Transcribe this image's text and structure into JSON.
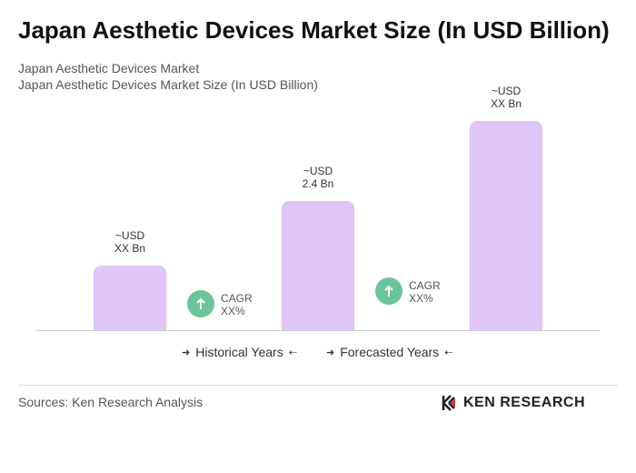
{
  "chart_data": {
    "type": "bar",
    "title": "Japan Aesthetic Devices Market Size (In USD Billion)",
    "subtitle": "Japan Aesthetic Devices Market",
    "subtitle2": "Japan Aesthetic Devices Market Size (In USD Billion)",
    "values": [
      1.2,
      2.4,
      3.9
    ],
    "value_labels": [
      "~USD\nXX Bn",
      "~USD\n2.4 Bn",
      "~USD\nXX Bn"
    ],
    "color": "#dfc5f8",
    "annotations": [
      "CAGR\nXX%",
      "CAGR\nXX%"
    ],
    "legend": [
      "Historical Years",
      "Forecasted Years"
    ],
    "source": "Sources: Ken Research Analysis",
    "logo": "KEN RESEARCH"
  }
}
